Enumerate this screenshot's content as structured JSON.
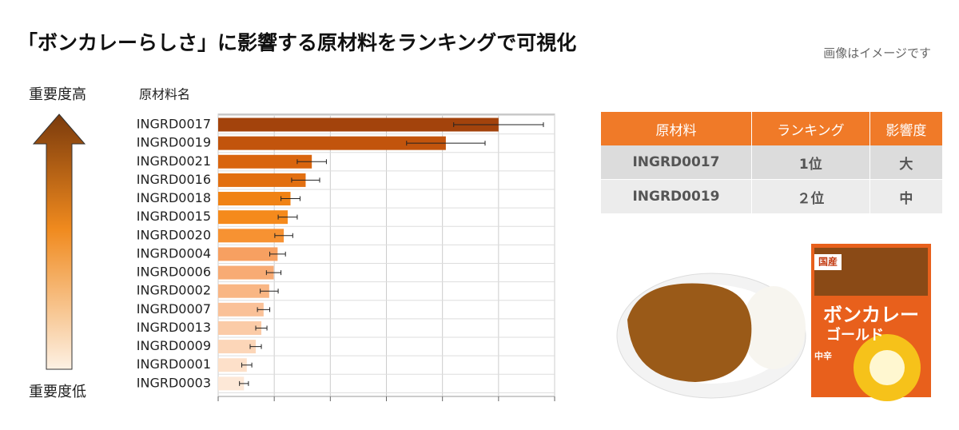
{
  "title": "「ボンカレーらしさ」に影響する原材料をランキングで可視化",
  "note": "画像はイメージです",
  "axis_high": "重要度高",
  "axis_low": "重要度低",
  "chart_data": {
    "type": "bar",
    "orientation": "horizontal",
    "y_label": "原材料名",
    "categories": [
      "INGRD0017",
      "INGRD0019",
      "INGRD0021",
      "INGRD0016",
      "INGRD0018",
      "INGRD0015",
      "INGRD0020",
      "INGRD0004",
      "INGRD0006",
      "INGRD0002",
      "INGRD0007",
      "INGRD0013",
      "INGRD0009",
      "INGRD0001",
      "INGRD0003"
    ],
    "values": [
      5.0,
      4.06,
      1.67,
      1.56,
      1.29,
      1.24,
      1.17,
      1.06,
      0.99,
      0.91,
      0.81,
      0.77,
      0.67,
      0.51,
      0.46
    ],
    "errors": [
      0.8,
      0.7,
      0.26,
      0.25,
      0.17,
      0.17,
      0.16,
      0.14,
      0.13,
      0.16,
      0.11,
      0.1,
      0.1,
      0.09,
      0.08
    ],
    "colors": [
      "#a3430c",
      "#c2540c",
      "#d9650e",
      "#e26f10",
      "#f08214",
      "#f58a1c",
      "#f79232",
      "#f7a061",
      "#f8ab74",
      "#f9b684",
      "#fac198",
      "#fbcba7",
      "#fcd6b8",
      "#fde0c9",
      "#fde8d7"
    ],
    "xlim": [
      0,
      6
    ],
    "xticks": [
      0,
      1,
      2,
      3,
      4,
      5,
      6
    ],
    "grid": true
  },
  "table": {
    "header": [
      "原材料",
      "ランキング",
      "影響度"
    ],
    "rows": [
      [
        "INGRD0017",
        "1位",
        "大"
      ],
      [
        "INGRD0019",
        "２位",
        "中"
      ]
    ]
  },
  "product": {
    "labels": [
      "国産",
      "ボンカレー",
      "ゴールド",
      "中辛"
    ]
  }
}
